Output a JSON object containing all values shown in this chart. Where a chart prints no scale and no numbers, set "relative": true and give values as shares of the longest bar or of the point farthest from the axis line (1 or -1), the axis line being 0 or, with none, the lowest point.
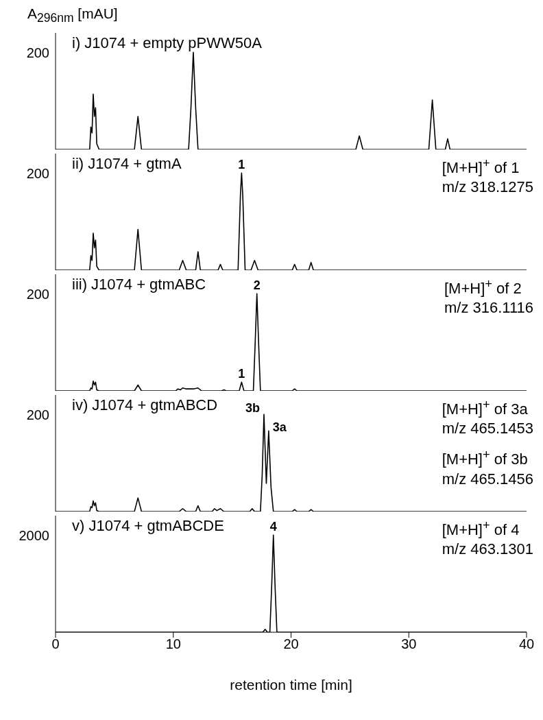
{
  "chart_data": [
    {
      "type": "line",
      "title": "i) J1074 + empty pPWW50A",
      "ylabel": "A$_{296nm}$ [mAU]",
      "color": "#000000",
      "relative": true,
      "tick_labels": false,
      "xlim": [
        0,
        40
      ],
      "xticks": [
        0,
        10,
        20,
        30,
        40
      ],
      "annotations": [
        "200"
      ],
      "x": [
        0,
        2.9,
        3.0,
        3.1,
        3.2,
        3.3,
        3.4,
        3.5,
        3.7,
        6.7,
        7.0,
        7.3,
        11.3,
        11.5,
        11.7,
        11.9,
        12.1,
        25.5,
        25.8,
        26.1,
        31.7,
        32.0,
        32.3,
        33.1,
        33.3,
        33.5,
        40
      ],
      "values": [
        0,
        0,
        0.23,
        0.17,
        0.57,
        0.34,
        0.43,
        0.06,
        0,
        0,
        0.34,
        0,
        0,
        0.43,
        1,
        0.43,
        0,
        0,
        0.14,
        0,
        0,
        0.51,
        0,
        0,
        0.11,
        0,
        0
      ]
    },
    {
      "type": "line",
      "title": "ii) J1074 + gtmA",
      "color": "#000000",
      "relative": true,
      "tick_labels": false,
      "xlim": [
        0,
        40
      ],
      "xticks": [
        0,
        10,
        20,
        30,
        40
      ],
      "annotations": [
        "200",
        "[M+H]$^{+}$ of 1",
        "m/z 318.1275",
        {
          "text": "1",
          "x": 15.8,
          "y": 1
        }
      ],
      "x": [
        0,
        2.9,
        3.0,
        3.1,
        3.2,
        3.3,
        3.4,
        3.5,
        3.7,
        6.7,
        7.0,
        7.3,
        10.5,
        10.8,
        11.1,
        11.9,
        12.1,
        12.3,
        13.8,
        14.0,
        14.2,
        15.5,
        15.7,
        15.8,
        15.9,
        16.1,
        16.6,
        16.9,
        17.2,
        20.1,
        20.3,
        20.5,
        21.5,
        21.7,
        21.9,
        40
      ],
      "values": [
        0,
        0,
        0.15,
        0.1,
        0.38,
        0.23,
        0.31,
        0.04,
        0,
        0,
        0.42,
        0,
        0,
        0.1,
        0,
        0,
        0.19,
        0,
        0,
        0.06,
        0,
        0,
        0.77,
        1,
        0.77,
        0,
        0,
        0.1,
        0,
        0,
        0.06,
        0,
        0,
        0.08,
        0,
        0
      ]
    },
    {
      "type": "line",
      "title": "iii) J1074 + gtmABC",
      "color": "#000000",
      "relative": true,
      "tick_labels": false,
      "xlim": [
        0,
        40
      ],
      "xticks": [
        0,
        10,
        20,
        30,
        40
      ],
      "annotations": [
        "200",
        "[M+H]$^{+}$ of 2",
        "m/z 316.1116",
        {
          "text": "1",
          "x": 15.8,
          "y": 0.09
        },
        {
          "text": "2",
          "x": 17.1,
          "y": 1
        }
      ],
      "x": [
        0,
        2.9,
        3.0,
        3.1,
        3.2,
        3.3,
        3.4,
        3.5,
        3.7,
        6.7,
        7.0,
        7.3,
        10.2,
        10.4,
        10.6,
        10.8,
        11.1,
        11.4,
        11.7,
        12.1,
        12.4,
        14.1,
        14.3,
        14.5,
        15.6,
        15.8,
        16.0,
        16.8,
        16.95,
        17.1,
        17.25,
        17.4,
        20.1,
        20.3,
        20.5,
        40
      ],
      "values": [
        0,
        0,
        0.03,
        0.02,
        0.1,
        0.06,
        0.09,
        0.01,
        0,
        0,
        0.06,
        0,
        0,
        0.02,
        0.01,
        0.03,
        0.02,
        0.02,
        0.02,
        0.03,
        0,
        0,
        0.01,
        0,
        0,
        0.09,
        0,
        0,
        0.48,
        1,
        0.48,
        0,
        0,
        0.02,
        0,
        0
      ]
    },
    {
      "type": "line",
      "title": "iv) J1074 + gtmABCD",
      "color": "#000000",
      "relative": true,
      "tick_labels": false,
      "xlim": [
        0,
        40
      ],
      "xticks": [
        0,
        10,
        20,
        30,
        40
      ],
      "annotations": [
        "200",
        "[M+H]$^{+}$ of 3a",
        "m/z 465.1453",
        "[M+H]$^{+}$ of 3b",
        "m/z 465.1456",
        {
          "text": "3b",
          "x": 17.7,
          "y": 1
        },
        {
          "text": "3a",
          "x": 18.1,
          "y": 0.83
        }
      ],
      "x": [
        0,
        2.9,
        3.0,
        3.1,
        3.2,
        3.3,
        3.4,
        3.5,
        3.7,
        6.7,
        7.0,
        7.3,
        10.5,
        10.8,
        11.1,
        11.9,
        12.1,
        12.3,
        13.3,
        13.5,
        13.7,
        14.0,
        14.3,
        16.5,
        16.7,
        16.9,
        17.4,
        17.55,
        17.7,
        17.9,
        18.1,
        18.3,
        18.5,
        20.1,
        20.3,
        20.5,
        21.5,
        21.7,
        21.9,
        40
      ],
      "values": [
        0,
        0,
        0.05,
        0.04,
        0.11,
        0.06,
        0.09,
        0.01,
        0,
        0,
        0.14,
        0,
        0,
        0.03,
        0,
        0,
        0.06,
        0,
        0,
        0.03,
        0.01,
        0.03,
        0,
        0,
        0.03,
        0,
        0,
        0.38,
        1,
        0.29,
        0.83,
        0.25,
        0,
        0,
        0.02,
        0,
        0,
        0.02,
        0,
        0
      ]
    },
    {
      "type": "line",
      "title": "v) J1074 + gtmABCDE",
      "xlabel": "retention time [min]",
      "color": "#000000",
      "relative": true,
      "tick_labels": "x",
      "xlim": [
        0,
        40
      ],
      "xticks": [
        0,
        10,
        20,
        30,
        40
      ],
      "annotations": [
        "2000",
        "[M+H]$^{+}$ of 4",
        "m/z 463.1301",
        {
          "text": "4",
          "x": 18.5,
          "y": 1
        }
      ],
      "x": [
        0,
        17.6,
        17.8,
        18.0,
        18.2,
        18.35,
        18.5,
        18.65,
        18.8,
        40
      ],
      "values": [
        0,
        0,
        0.03,
        0,
        0,
        0.45,
        1,
        0.45,
        0,
        0
      ]
    }
  ]
}
